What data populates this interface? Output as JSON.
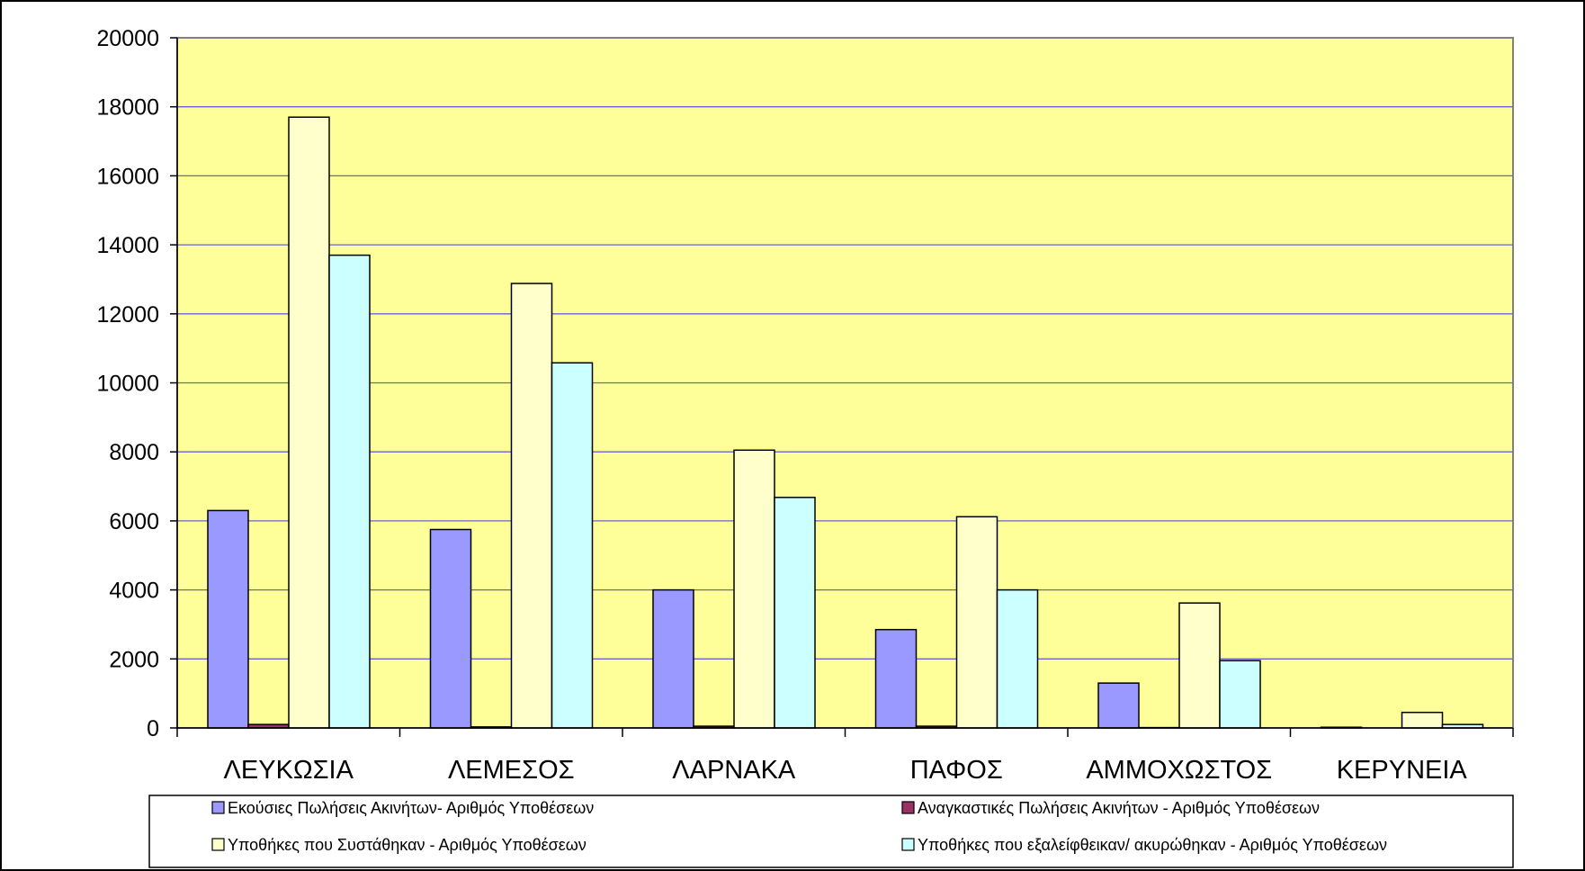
{
  "chart_data": {
    "type": "bar",
    "title": "",
    "xlabel": "",
    "ylabel": "",
    "ylim": [
      0,
      20000
    ],
    "yticks": [
      0,
      2000,
      4000,
      6000,
      8000,
      10000,
      12000,
      14000,
      16000,
      18000,
      20000
    ],
    "grid": true,
    "legend_position": "bottom",
    "plot_background": "#FFFF99",
    "categories": [
      "ΛΕΥΚΩΣΙΑ",
      "ΛΕΜΕΣΟΣ",
      "ΛΑΡΝΑΚΑ",
      "ΠΑΦΟΣ",
      "ΑΜΜΟΧΩΣΤΟΣ",
      "ΚΕΡΥΝΕΙΑ"
    ],
    "series": [
      {
        "name": "Εκούσιες Πωλήσεις Ακινήτων- Αριθμός Υποθέσεων",
        "color": "#9999FF",
        "values": [
          6300,
          5750,
          4000,
          2850,
          1300,
          20
        ]
      },
      {
        "name": "Αναγκαστικές Πωλήσεις Ακινήτων - Αριθμός Υποθέσεων",
        "color": "#993366",
        "values": [
          100,
          30,
          50,
          50,
          10,
          0
        ]
      },
      {
        "name": "Υποθήκες που Συστάθηκαν - Αριθμός Υποθέσεων",
        "color": "#FFFFCC",
        "values": [
          17700,
          12880,
          8050,
          6120,
          3620,
          450
        ]
      },
      {
        "name": "Υποθήκες που εξαλείφθεικαν/ ακυρώθηκαν - Αριθμός Υποθέσεων",
        "color": "#CCFFFF",
        "values": [
          13700,
          10580,
          6680,
          4000,
          1950,
          100
        ]
      }
    ]
  }
}
